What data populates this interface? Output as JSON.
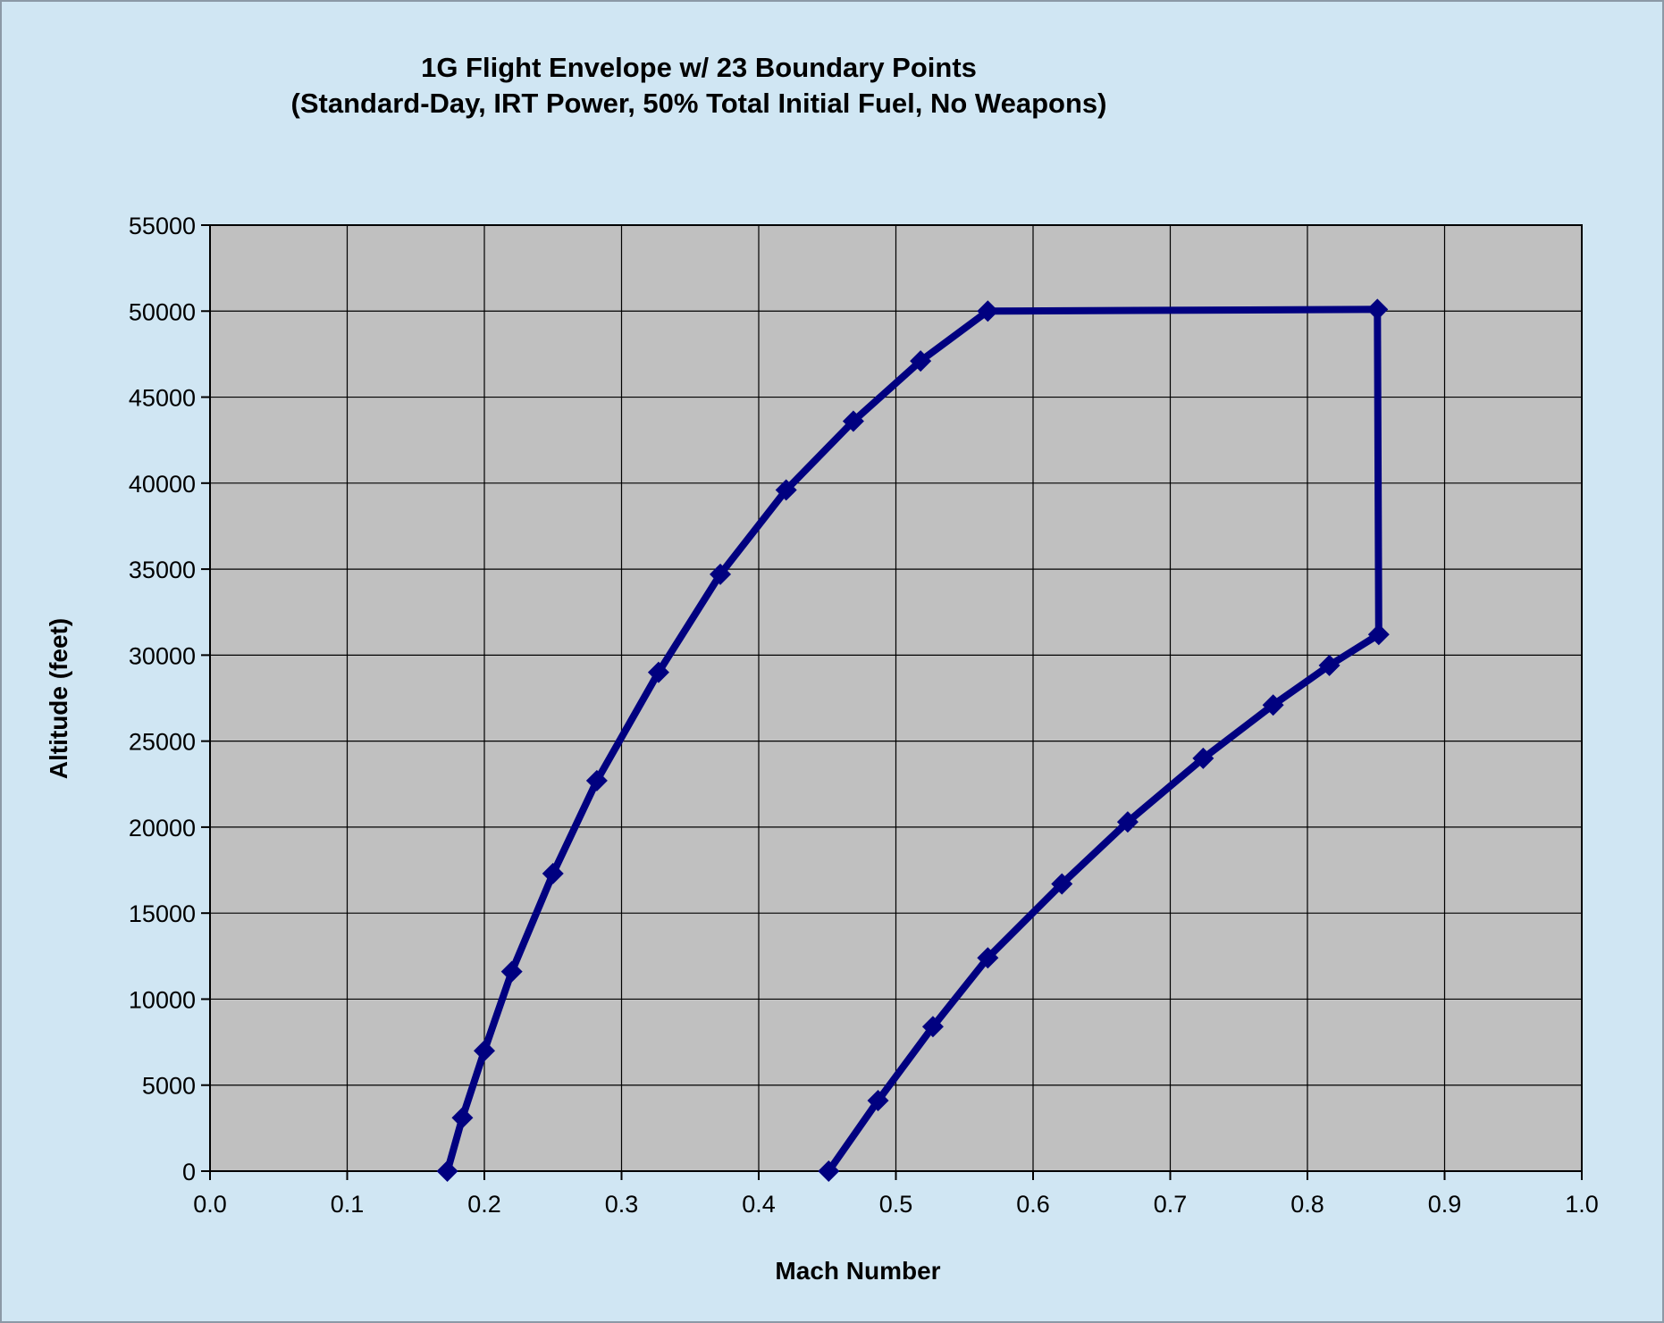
{
  "chart_data": {
    "type": "scatter",
    "title_lines": [
      "1G Flight Envelope w/ 23 Boundary Points",
      "(Standard-Day, IRT Power, 50%  Total Initial Fuel, No Weapons)"
    ],
    "xlabel": "Mach Number",
    "ylabel": "Altitude (feet)",
    "xlim": [
      0.0,
      1.0
    ],
    "ylim": [
      0,
      55000
    ],
    "x_ticks": [
      "0.0",
      "0.1",
      "0.2",
      "0.3",
      "0.4",
      "0.5",
      "0.6",
      "0.7",
      "0.8",
      "0.9",
      "1.0"
    ],
    "y_ticks": [
      "0",
      "5000",
      "10000",
      "15000",
      "20000",
      "25000",
      "30000",
      "35000",
      "40000",
      "45000",
      "50000",
      "55000"
    ],
    "grid": true,
    "legend": "none",
    "plot_background": "#c0c0c0",
    "series_color": "#000080",
    "marker": "diamond",
    "series": [
      {
        "points": [
          [
            0.173,
            0
          ],
          [
            0.184,
            3100
          ],
          [
            0.2,
            7000
          ],
          [
            0.22,
            11600
          ],
          [
            0.25,
            17300
          ],
          [
            0.282,
            22700
          ],
          [
            0.327,
            29000
          ],
          [
            0.372,
            34700
          ],
          [
            0.42,
            39600
          ],
          [
            0.469,
            43600
          ],
          [
            0.518,
            47100
          ],
          [
            0.567,
            50000
          ],
          [
            0.851,
            50100
          ],
          [
            0.852,
            31200
          ],
          [
            0.816,
            29400
          ],
          [
            0.775,
            27100
          ],
          [
            0.724,
            24000
          ],
          [
            0.669,
            20300
          ],
          [
            0.621,
            16700
          ],
          [
            0.567,
            12400
          ],
          [
            0.527,
            8400
          ],
          [
            0.487,
            4100
          ],
          [
            0.451,
            0
          ]
        ]
      }
    ]
  }
}
